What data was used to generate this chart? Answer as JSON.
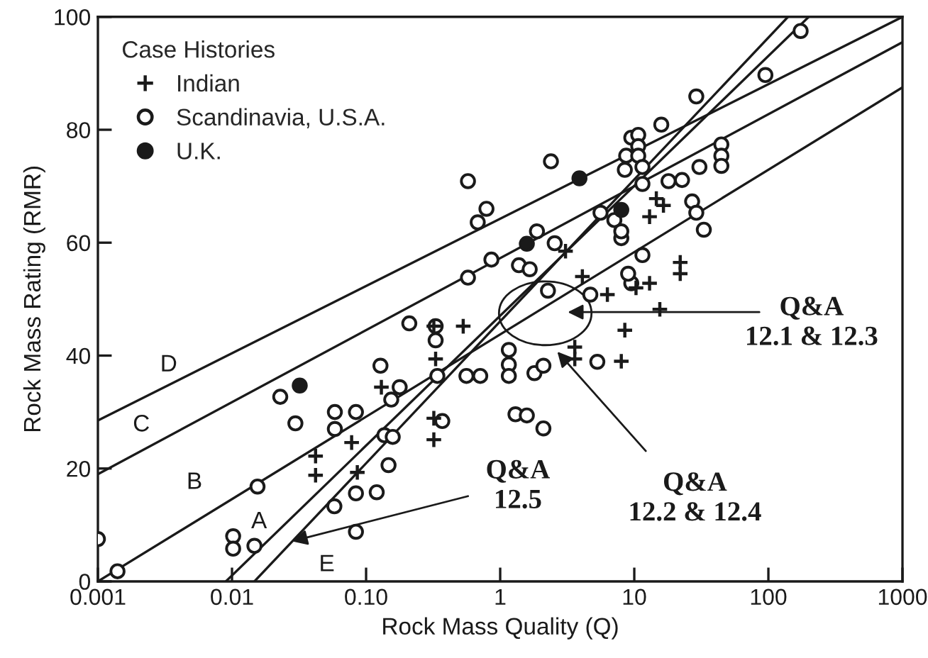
{
  "chart_data": {
    "type": "scatter",
    "xlabel": "Rock Mass Quality (Q)",
    "ylabel": "Rock Mass Rating (RMR)",
    "legend_title": "Case Histories",
    "legend": "top left",
    "log": "x",
    "grid": false,
    "xlim": [
      0.001,
      1000
    ],
    "xticks": [
      0.001,
      0.01,
      {
        "value": 0.1,
        "label": "0.10"
      },
      1,
      10,
      100,
      1000
    ],
    "ylim": [
      0,
      100
    ],
    "yticks": [
      0,
      20,
      40,
      60,
      80,
      100
    ],
    "series": [
      {
        "name": "Indian",
        "type": "scatter",
        "marker": "cross",
        "color": "#1a1a1a",
        "x": [
          0.078,
          0.042,
          0.042,
          0.32,
          0.33,
          0.53,
          0.13,
          0.32,
          0.32,
          0.086,
          3.07,
          4.1,
          6.3,
          8.5,
          8.0,
          3.6,
          3.6,
          14.6,
          16.5,
          13,
          22,
          22,
          10.3,
          13,
          15.5
        ],
        "values": [
          24.6,
          22.2,
          18.8,
          45.2,
          39.4,
          45.2,
          34.4,
          28.9,
          25.1,
          19.3,
          58.5,
          54,
          50.8,
          44.5,
          39,
          41.5,
          39.4,
          67.8,
          66.6,
          64.6,
          56.5,
          54.5,
          52,
          52.8,
          48.2
        ]
      },
      {
        "name": "Scandinavia, U.S.A.",
        "type": "scatter",
        "marker": "circle",
        "color": "#ffffff",
        "x": [
          0.001,
          0.0014,
          0.0102,
          0.0102,
          0.0147,
          0.0155,
          0.0229,
          0.0297,
          0.0585,
          0.0585,
          0.084,
          0.058,
          0.084,
          0.084,
          0.575,
          2.39,
          0.79,
          0.68,
          1.88,
          2.55,
          1.38,
          1.66,
          0.86,
          0.575,
          2.27,
          0.21,
          0.33,
          0.33,
          0.128,
          0.178,
          0.154,
          0.34,
          0.56,
          0.71,
          1.16,
          1.16,
          1.16,
          1.8,
          2.1,
          5.3,
          1.3,
          1.58,
          2.1,
          0.37,
          0.137,
          0.158,
          0.147,
          0.12,
          5.6,
          7.1,
          8.0,
          8.7,
          9.5,
          9.5,
          4.7,
          174,
          95,
          29,
          15.9,
          10.7,
          10.7,
          10.7,
          8.5,
          11.5,
          11.5,
          44.6,
          44.6,
          44.6,
          30.6,
          18,
          22.7,
          27,
          29,
          33,
          8,
          11.5,
          9
        ],
        "values": [
          7.5,
          1.8,
          8,
          5.8,
          6.3,
          16.8,
          32.7,
          28,
          30,
          27,
          30,
          13.3,
          15.6,
          8.8,
          70.9,
          74.4,
          66,
          63.6,
          62,
          59.9,
          56,
          55.3,
          57,
          53.8,
          51.5,
          45.7,
          45.2,
          42.7,
          38.2,
          34.4,
          32.2,
          36.4,
          36.4,
          36.4,
          41,
          38.4,
          36.4,
          36.9,
          38.2,
          38.9,
          29.6,
          29.4,
          27.1,
          28.4,
          25.9,
          25.6,
          20.6,
          15.8,
          65.3,
          64,
          60.8,
          75.4,
          78.6,
          52.8,
          50.8,
          97.5,
          89.7,
          85.9,
          80.9,
          79.1,
          77.1,
          75.4,
          72.9,
          73.4,
          70.4,
          77.4,
          75.4,
          73.6,
          73.4,
          70.9,
          71.1,
          67.3,
          65.3,
          62.3,
          62,
          57.8,
          54.5
        ]
      },
      {
        "name": "U.K.",
        "type": "scatter",
        "marker": "circle",
        "color": "#1a1a1a",
        "x": [
          0.032,
          3.9,
          1.58,
          8.0
        ],
        "values": [
          34.7,
          71.4,
          59.8,
          65.8
        ]
      },
      {
        "name": "D",
        "type": "line",
        "marker": "none",
        "line_style": "solid",
        "color": "#1a1a1a",
        "x": [
          0.001,
          1000
        ],
        "values": [
          28.5,
          100
        ]
      },
      {
        "name": "C",
        "type": "line",
        "marker": "none",
        "line_style": "solid",
        "color": "#1a1a1a",
        "x": [
          0.001,
          1000
        ],
        "values": [
          19,
          95.5
        ]
      },
      {
        "name": "B",
        "type": "line",
        "marker": "none",
        "line_style": "solid",
        "color": "#1a1a1a",
        "x": [
          0.001,
          1000
        ],
        "values": [
          0,
          87.5
        ]
      },
      {
        "name": "A",
        "type": "line",
        "marker": "none",
        "line_style": "solid",
        "color": "#1a1a1a",
        "x": [
          0.009,
          200
        ],
        "values": [
          0,
          100
        ]
      },
      {
        "name": "E",
        "type": "line",
        "marker": "none",
        "line_style": "solid",
        "color": "#1a1a1a",
        "x": [
          0.0147,
          140
        ],
        "values": [
          0,
          100
        ]
      }
    ],
    "annotations": [
      "Q&A\n12.1 & 12.3",
      "Q&A\n12.2 & 12.4",
      {
        "text": "Q&A\n12.5",
        "x": 0.028,
        "y": 7.1
      }
    ]
  }
}
